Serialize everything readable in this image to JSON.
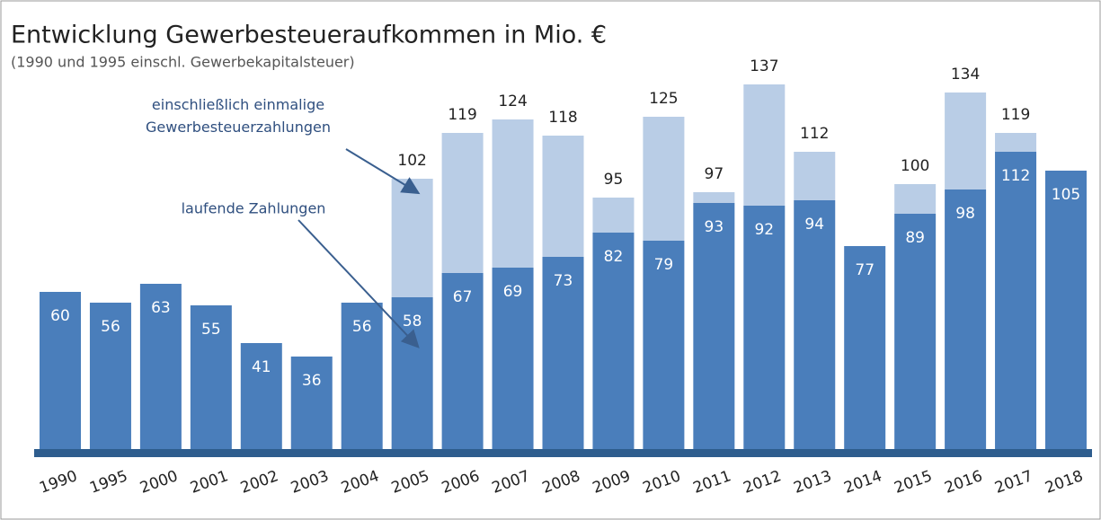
{
  "chart_data": {
    "type": "stacked_bar",
    "title": "Entwicklung Gewerbesteueraufkommen in Mio. €",
    "subtitle": "(1990 und 1995 einschl. Gewerbekapitalsteuer)",
    "categories": [
      "1990",
      "1995",
      "2000",
      "2001",
      "2002",
      "2003",
      "2004",
      "2005",
      "2006",
      "2007",
      "2008",
      "2009",
      "2010",
      "2011",
      "2012",
      "2013",
      "2014",
      "2015",
      "2016",
      "2017",
      "2018"
    ],
    "series": [
      {
        "name": "laufende Zahlungen",
        "color": "#4a7ebb",
        "values": [
          60,
          56,
          63,
          55,
          41,
          36,
          56,
          58,
          67,
          69,
          73,
          82,
          79,
          93,
          92,
          94,
          77,
          89,
          98,
          112,
          105
        ]
      },
      {
        "name": "einschließlich einmalige Gewerbesteuerzahlungen",
        "color": "#b9cde6",
        "values": [
          null,
          null,
          null,
          null,
          null,
          null,
          null,
          44,
          52,
          55,
          45,
          13,
          46,
          4,
          45,
          18,
          null,
          11,
          36,
          7,
          null
        ]
      }
    ],
    "totals": [
      null,
      null,
      null,
      null,
      null,
      null,
      null,
      102,
      119,
      124,
      118,
      95,
      125,
      97,
      137,
      112,
      null,
      100,
      134,
      119,
      null
    ],
    "ylim": [
      0,
      140
    ]
  }
}
